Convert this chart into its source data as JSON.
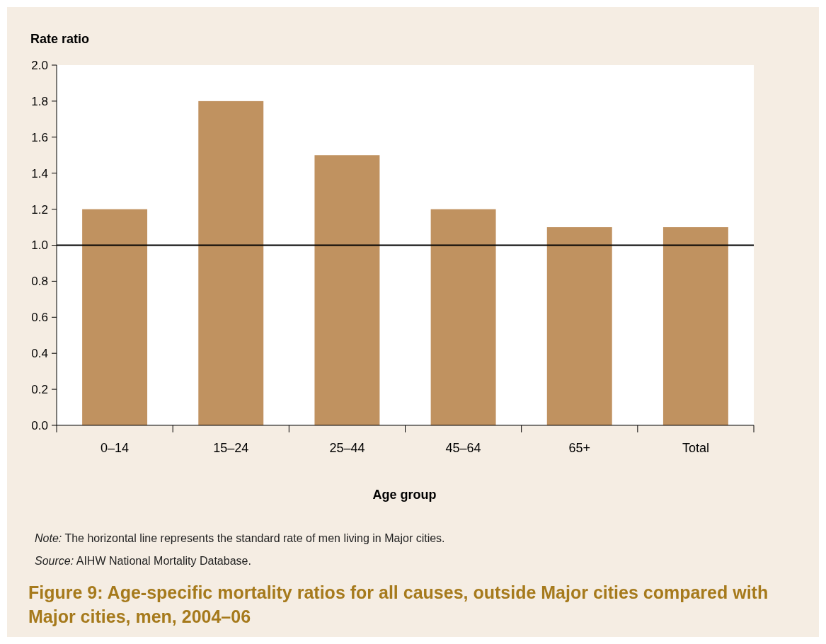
{
  "chart_data": {
    "type": "bar",
    "title": "Figure 9: Age-specific mortality ratios for all causes, outside Major cities compared with Major cities, men, 2004–06",
    "xlabel": "Age group",
    "ylabel": "Rate ratio",
    "categories": [
      "0–14",
      "15–24",
      "25–44",
      "45–64",
      "65+",
      "Total"
    ],
    "values": [
      1.2,
      1.8,
      1.5,
      1.2,
      1.1,
      1.1
    ],
    "color": "#c09260",
    "ylim": [
      0,
      2
    ],
    "yticks": [
      {
        "value": 0,
        "label": "0.0"
      },
      {
        "value": 0.2,
        "label": "0.2"
      },
      {
        "value": 0.4,
        "label": "0.4"
      },
      {
        "value": 0.6,
        "label": "0.6"
      },
      {
        "value": 0.8,
        "label": "0.8"
      },
      {
        "value": 1,
        "label": "1.0"
      },
      {
        "value": 1.2,
        "label": "1.2"
      },
      {
        "value": 1.4,
        "label": "1.4"
      },
      {
        "value": 1.6,
        "label": "1.6"
      },
      {
        "value": 1.8,
        "label": "1.8"
      },
      {
        "value": 2,
        "label": "2.0"
      }
    ],
    "ref_lines": [
      {
        "axis": "y",
        "value": 1,
        "color": "#000000"
      }
    ],
    "annotations": [
      "Note: The horizontal line represents the standard rate of men living in Major cities.",
      "Source: AIHW National Mortality Database."
    ],
    "grid": false
  }
}
